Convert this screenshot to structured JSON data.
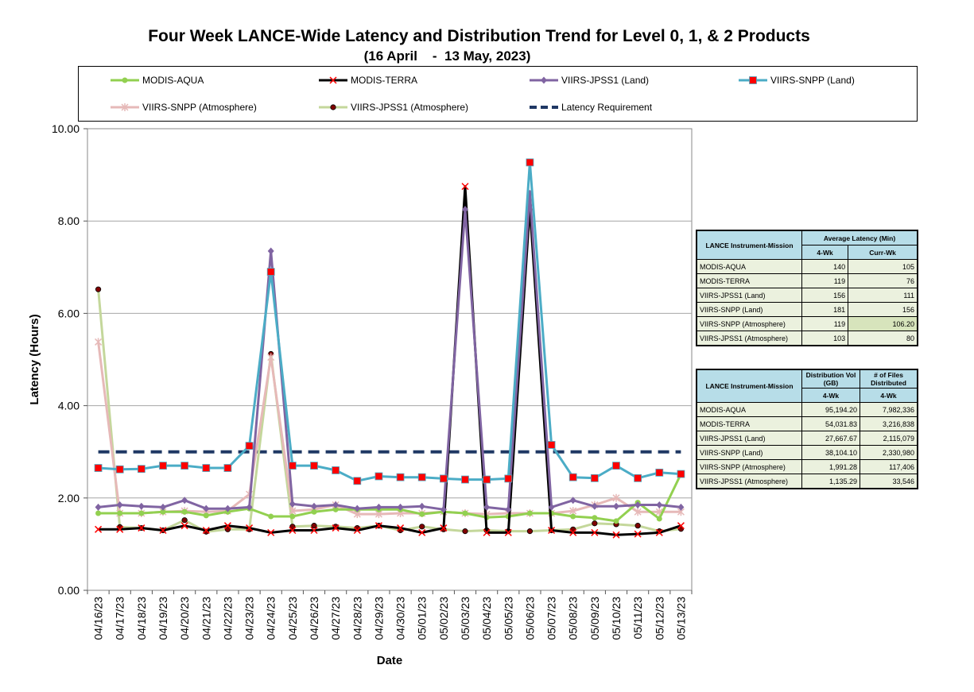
{
  "title": "Four Week LANCE-Wide Latency and Distribution Trend for Level 0, 1, & 2 Products",
  "subtitle": "(16 April    -  13 May, 2023)",
  "colors": {
    "modis_aqua": "#92d050",
    "modis_terra": "#000000",
    "viirs_jpss1_land": "#8064a2",
    "viirs_snpp_land": "#4bacc6",
    "viirs_snpp_atm": "#e6b9b8",
    "viirs_jpss1_atm": "#c4d79b",
    "requirement": "#1f3864",
    "marker_red": "#ff0000",
    "marker_dark": "#800000"
  },
  "chart_data": {
    "type": "line",
    "xlabel": "Date",
    "ylabel": "Latency (Hours)",
    "ylim": [
      0,
      10
    ],
    "yticks": [
      "0.00",
      "2.00",
      "4.00",
      "6.00",
      "8.00",
      "10.00"
    ],
    "grid": true,
    "legend_position": "top",
    "categories": [
      "04/16/23",
      "04/17/23",
      "04/18/23",
      "04/19/23",
      "04/20/23",
      "04/21/23",
      "04/22/23",
      "04/23/23",
      "04/24/23",
      "04/25/23",
      "04/26/23",
      "04/27/23",
      "04/28/23",
      "04/29/23",
      "04/30/23",
      "05/01/23",
      "05/02/23",
      "05/03/23",
      "05/04/23",
      "05/05/23",
      "05/06/23",
      "05/07/23",
      "05/08/23",
      "05/09/23",
      "05/10/23",
      "05/11/23",
      "05/12/23",
      "05/13/23"
    ],
    "series": [
      {
        "name": "MODIS-AQUA",
        "key": "modis_aqua",
        "marker": "circle",
        "values": [
          1.67,
          1.67,
          1.67,
          1.7,
          1.7,
          1.62,
          1.7,
          1.77,
          1.6,
          1.6,
          1.7,
          1.75,
          1.75,
          1.75,
          1.75,
          1.65,
          1.7,
          1.67,
          1.58,
          1.6,
          1.67,
          1.67,
          1.6,
          1.57,
          1.5,
          1.9,
          1.55,
          2.52
        ]
      },
      {
        "name": "MODIS-TERRA",
        "key": "modis_terra",
        "marker": "x",
        "values": [
          1.32,
          1.32,
          1.35,
          1.3,
          1.4,
          1.3,
          1.4,
          1.35,
          1.25,
          1.3,
          1.3,
          1.35,
          1.3,
          1.4,
          1.35,
          1.25,
          1.35,
          8.75,
          1.25,
          1.25,
          8.3,
          1.3,
          1.25,
          1.25,
          1.2,
          1.22,
          1.25,
          1.4
        ]
      },
      {
        "name": "VIIRS-JPSS1 (Land)",
        "key": "viirs_jpss1_land",
        "marker": "diamond",
        "values": [
          1.8,
          1.85,
          1.82,
          1.8,
          1.95,
          1.77,
          1.77,
          1.8,
          7.35,
          1.87,
          1.82,
          1.85,
          1.77,
          1.8,
          1.8,
          1.82,
          1.75,
          8.25,
          1.8,
          1.75,
          8.6,
          1.8,
          1.95,
          1.82,
          1.82,
          1.85,
          1.85,
          1.8
        ]
      },
      {
        "name": "VIIRS-SNPP (Land)",
        "key": "viirs_snpp_land",
        "marker": "square",
        "values": [
          2.65,
          2.62,
          2.63,
          2.7,
          2.7,
          2.65,
          2.65,
          3.13,
          6.9,
          2.7,
          2.7,
          2.6,
          2.37,
          2.47,
          2.45,
          2.45,
          2.42,
          2.4,
          2.4,
          2.42,
          9.27,
          3.15,
          2.45,
          2.43,
          2.7,
          2.43,
          2.55,
          2.52
        ]
      },
      {
        "name": "VIIRS-SNPP (Atmosphere)",
        "key": "viirs_snpp_atm",
        "marker": "star",
        "values": [
          5.38,
          1.67,
          1.67,
          1.7,
          1.72,
          1.7,
          1.72,
          2.08,
          5.05,
          1.72,
          1.75,
          1.85,
          1.65,
          1.65,
          1.67,
          1.67,
          1.7,
          1.67,
          1.65,
          1.67,
          1.67,
          1.67,
          1.72,
          1.85,
          2.0,
          1.7,
          1.7,
          1.7
        ]
      },
      {
        "name": "VIIRS-JPSS1 (Atmosphere)",
        "key": "viirs_jpss1_atm",
        "marker": "dot",
        "values": [
          6.52,
          1.37,
          1.35,
          1.3,
          1.52,
          1.27,
          1.32,
          1.32,
          5.12,
          1.38,
          1.4,
          1.38,
          1.35,
          1.4,
          1.3,
          1.38,
          1.32,
          1.28,
          1.3,
          1.28,
          1.28,
          1.3,
          1.32,
          1.45,
          1.43,
          1.4,
          1.28,
          1.33
        ]
      },
      {
        "name": "Latency Requirement",
        "key": "requirement",
        "marker": "dash",
        "values": [
          3,
          3,
          3,
          3,
          3,
          3,
          3,
          3,
          3,
          3,
          3,
          3,
          3,
          3,
          3,
          3,
          3,
          3,
          3,
          3,
          3,
          3,
          3,
          3,
          3,
          3,
          3,
          3
        ]
      }
    ]
  },
  "latency_table": {
    "header_col1": "LANCE Instrument-Mission",
    "header_col2": "Average Latency (Min)",
    "sub_col2": "4-Wk",
    "sub_col3": "Curr-Wk",
    "rows": [
      {
        "name": "MODIS-AQUA",
        "wk4": "140",
        "curr": "105"
      },
      {
        "name": "MODIS-TERRA",
        "wk4": "119",
        "curr": "76"
      },
      {
        "name": "VIIRS-JPSS1 (Land)",
        "wk4": "156",
        "curr": "111"
      },
      {
        "name": "VIIRS-SNPP (Land)",
        "wk4": "181",
        "curr": "156"
      },
      {
        "name": "VIIRS-SNPP (Atmosphere)",
        "wk4": "119",
        "curr": "106.20"
      },
      {
        "name": "VIIRS-JPSS1 (Atmosphere)",
        "wk4": "103",
        "curr": "80"
      }
    ]
  },
  "distribution_table": {
    "header_col1": "LANCE Instrument-Mission",
    "header_col2": "Distribution Vol (GB)",
    "header_col3": "# of Files Distributed",
    "sub_col2": "4-Wk",
    "sub_col3": "4-Wk",
    "rows": [
      {
        "name": "MODIS-AQUA",
        "vol": "95,194.20",
        "files": "7,982,336"
      },
      {
        "name": "MODIS-TERRA",
        "vol": "54,031.83",
        "files": "3,216,838"
      },
      {
        "name": "VIIRS-JPSS1 (Land)",
        "vol": "27,667.67",
        "files": "2,115,079"
      },
      {
        "name": "VIIRS-SNPP (Land)",
        "vol": "38,104.10",
        "files": "2,330,980"
      },
      {
        "name": "VIIRS-SNPP (Atmosphere)",
        "vol": "1,991.28",
        "files": "117,406"
      },
      {
        "name": "VIIRS-JPSS1 (Atmosphere)",
        "vol": "1,135.29",
        "files": "33,546"
      }
    ]
  }
}
